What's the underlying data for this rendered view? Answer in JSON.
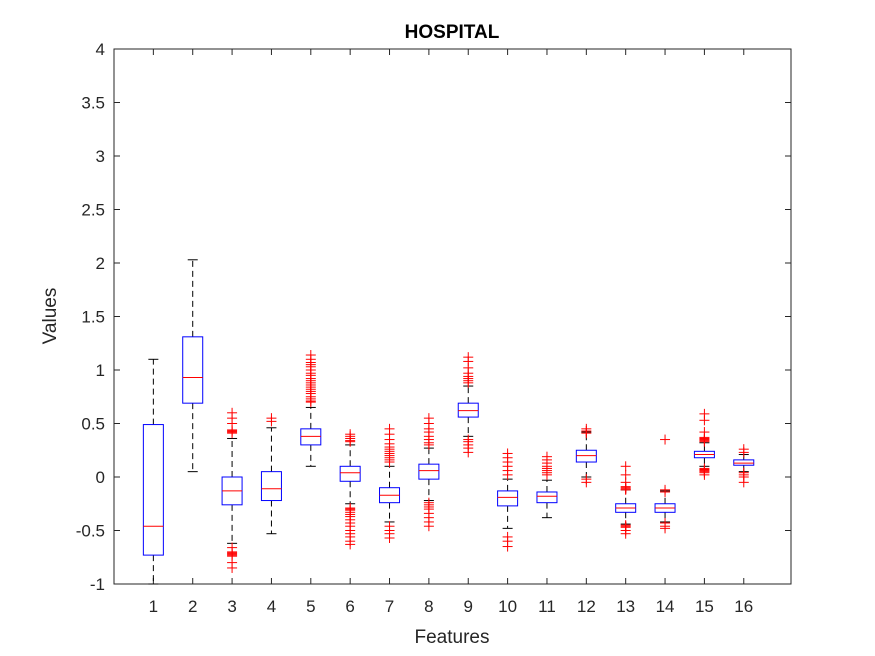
{
  "chart_data": {
    "type": "box",
    "title": "HOSPITAL",
    "xlabel": "Features",
    "ylabel": "Values",
    "xlim": [
      0,
      17.2
    ],
    "ylim": [
      -1,
      4
    ],
    "yticks": [
      -1,
      -0.5,
      0,
      0.5,
      1,
      1.5,
      2,
      2.5,
      3,
      3.5,
      4
    ],
    "ytick_labels": [
      "-1",
      "-0.5",
      "0",
      "0.5",
      "1",
      "1.5",
      "2",
      "2.5",
      "3",
      "3.5",
      "4"
    ],
    "categories": [
      "1",
      "2",
      "3",
      "4",
      "5",
      "6",
      "7",
      "8",
      "9",
      "10",
      "11",
      "12",
      "13",
      "14",
      "15",
      "16"
    ],
    "grid": false,
    "colors": {
      "box": "#0000ff",
      "median": "#ff0000",
      "outlier": "#ff0000",
      "whisker": "#000000",
      "axis": "#262626"
    },
    "boxes": [
      {
        "q1": -0.73,
        "median": -0.46,
        "q3": 0.49,
        "whisker_low": -1.0,
        "whisker_high": 1.1,
        "outliers": []
      },
      {
        "q1": 0.69,
        "median": 0.93,
        "q3": 1.31,
        "whisker_low": 0.05,
        "whisker_high": 2.03,
        "outliers": []
      },
      {
        "q1": -0.26,
        "median": -0.13,
        "q3": 0.0,
        "whisker_low": -0.62,
        "whisker_high": 0.36,
        "outliers": [
          0.6,
          0.55,
          0.5,
          0.44,
          0.43,
          0.42,
          0.41,
          -0.66,
          -0.7,
          -0.71,
          -0.72,
          -0.73,
          -0.74,
          -0.8,
          -0.85
        ]
      },
      {
        "q1": -0.22,
        "median": -0.11,
        "q3": 0.05,
        "whisker_low": -0.53,
        "whisker_high": 0.46,
        "outliers": [
          0.55,
          0.52
        ]
      },
      {
        "q1": 0.3,
        "median": 0.38,
        "q3": 0.45,
        "whisker_low": 0.1,
        "whisker_high": 0.65,
        "outliers": [
          1.14,
          1.1,
          1.07,
          1.05,
          1.03,
          1.0,
          0.97,
          0.95,
          0.92,
          0.9,
          0.88,
          0.86,
          0.84,
          0.82,
          0.8,
          0.78,
          0.75,
          0.73,
          0.71,
          0.7
        ]
      },
      {
        "q1": -0.04,
        "median": 0.04,
        "q3": 0.1,
        "whisker_low": -0.25,
        "whisker_high": 0.3,
        "outliers": [
          0.4,
          0.38,
          0.36,
          0.34,
          0.33,
          -0.29,
          -0.3,
          -0.31,
          -0.33,
          -0.35,
          -0.37,
          -0.4,
          -0.43,
          -0.46,
          -0.5,
          -0.53,
          -0.56,
          -0.6,
          -0.63
        ]
      },
      {
        "q1": -0.24,
        "median": -0.17,
        "q3": -0.1,
        "whisker_low": -0.42,
        "whisker_high": 0.1,
        "outliers": [
          0.45,
          0.4,
          0.35,
          0.31,
          0.28,
          0.26,
          0.24,
          0.22,
          0.2,
          0.18,
          0.16,
          0.14,
          -0.46,
          -0.5,
          -0.53,
          -0.57
        ]
      },
      {
        "q1": -0.02,
        "median": 0.06,
        "q3": 0.12,
        "whisker_low": -0.22,
        "whisker_high": 0.27,
        "outliers": [
          0.55,
          0.5,
          0.45,
          0.42,
          0.38,
          0.35,
          0.32,
          0.3,
          -0.24,
          -0.26,
          -0.28,
          -0.3,
          -0.34,
          -0.38,
          -0.42,
          -0.46
        ]
      },
      {
        "q1": 0.56,
        "median": 0.62,
        "q3": 0.69,
        "whisker_low": 0.38,
        "whisker_high": 0.85,
        "outliers": [
          1.12,
          1.08,
          1.02,
          0.97,
          0.94,
          0.92,
          0.9,
          0.88,
          0.35,
          0.33,
          0.3,
          0.27,
          0.23
        ]
      },
      {
        "q1": -0.27,
        "median": -0.19,
        "q3": -0.13,
        "whisker_low": -0.48,
        "whisker_high": -0.02,
        "outliers": [
          0.22,
          0.18,
          0.14,
          0.1,
          0.06,
          0.02,
          -0.56,
          -0.6,
          -0.65
        ]
      },
      {
        "q1": -0.24,
        "median": -0.18,
        "q3": -0.14,
        "whisker_low": -0.38,
        "whisker_high": -0.03,
        "outliers": [
          0.19,
          0.16,
          0.13,
          0.1,
          0.08,
          0.06,
          0.04,
          0.02
        ]
      },
      {
        "q1": 0.14,
        "median": 0.2,
        "q3": 0.25,
        "whisker_low": 0.0,
        "whisker_high": 0.42,
        "outliers": [
          0.45,
          0.43,
          0.41,
          -0.02,
          -0.05
        ]
      },
      {
        "q1": -0.33,
        "median": -0.29,
        "q3": -0.25,
        "whisker_low": -0.44,
        "whisker_high": -0.12,
        "outliers": [
          0.1,
          0.02,
          -0.05,
          -0.09,
          -0.1,
          -0.11,
          -0.12,
          -0.45,
          -0.46,
          -0.47,
          -0.5,
          -0.53
        ]
      },
      {
        "q1": -0.33,
        "median": -0.29,
        "q3": -0.25,
        "whisker_low": -0.42,
        "whisker_high": -0.13,
        "outliers": [
          0.35,
          -0.12,
          -0.14,
          -0.43,
          -0.46,
          -0.48
        ]
      },
      {
        "q1": 0.18,
        "median": 0.21,
        "q3": 0.24,
        "whisker_low": 0.1,
        "whisker_high": 0.32,
        "outliers": [
          0.59,
          0.53,
          0.42,
          0.37,
          0.36,
          0.35,
          0.34,
          0.33,
          0.08,
          0.07,
          0.06,
          0.05,
          0.04,
          0.02
        ]
      },
      {
        "q1": 0.11,
        "median": 0.13,
        "q3": 0.16,
        "whisker_low": 0.05,
        "whisker_high": 0.21,
        "outliers": [
          0.26,
          0.23,
          0.04,
          0.02,
          0.0,
          -0.05
        ]
      }
    ]
  }
}
